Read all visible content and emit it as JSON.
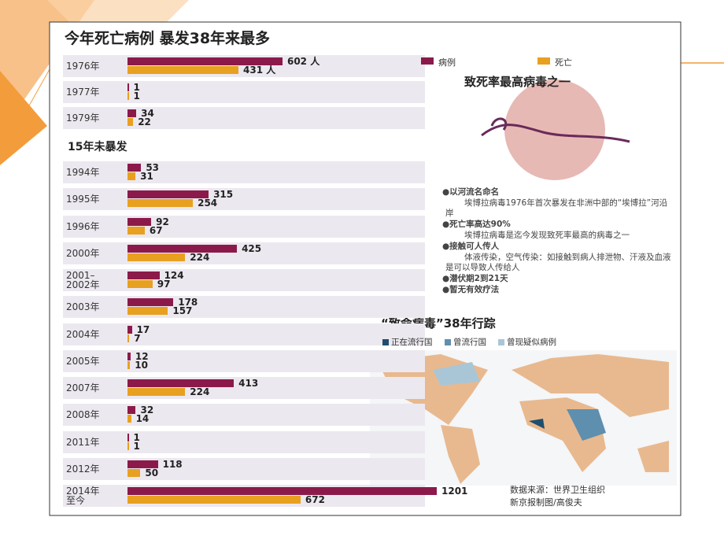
{
  "chart_data": {
    "type": "bar",
    "title": "今年死亡病例 暴发38年来最多",
    "section_label": "15年未暴发",
    "categories": [
      "1976年",
      "1977年",
      "1979年",
      "1994年",
      "1995年",
      "1996年",
      "2000年",
      "2001–\n2002年",
      "2003年",
      "2004年",
      "2005年",
      "2007年",
      "2008年",
      "2011年",
      "2012年",
      "2014年\n至今"
    ],
    "series": [
      {
        "name": "病例",
        "color": "#8b1a4a",
        "values": [
          602,
          1,
          34,
          53,
          315,
          92,
          425,
          124,
          178,
          17,
          12,
          413,
          32,
          1,
          118,
          1201
        ],
        "value_labels": [
          "602 人",
          "1",
          "34",
          "53",
          "315",
          "92",
          "425",
          "124",
          "178",
          "17",
          "12",
          "413",
          "32",
          "1",
          "118",
          "1201"
        ]
      },
      {
        "name": "死亡",
        "color": "#e8a020",
        "values": [
          431,
          1,
          22,
          31,
          254,
          67,
          224,
          97,
          157,
          7,
          10,
          224,
          14,
          1,
          50,
          672
        ],
        "value_labels": [
          "431 人",
          "1",
          "22",
          "31",
          "254",
          "67",
          "224",
          "97",
          "157",
          "7",
          "10",
          "224",
          "14",
          "1",
          "50",
          "672"
        ]
      }
    ]
  },
  "side_panel": {
    "title": "致死率最高病毒之一",
    "items": [
      "●以河流名命名",
      "埃博拉病毒1976年首次暴发在非洲中部的“埃博拉”河沿岸",
      "●死亡率高达90%",
      "埃博拉病毒是迄今发现致死率最高的病毒之一",
      "●接触可人传人",
      "体液传染，空气传染：如接触到病人排泄物、汗液及血液是可以导致人传给人",
      "●潜伏期2到21天",
      "●暂无有效疗法"
    ]
  },
  "map": {
    "title": "“致命病毒”38年行踪",
    "legend": [
      {
        "label": "正在流行国",
        "color": "#1f4e6e"
      },
      {
        "label": "曾流行国",
        "color": "#5f8fae"
      },
      {
        "label": "曾现疑似病例",
        "color": "#a9c6d6"
      }
    ]
  },
  "source": [
    "数据来源：世界卫生组织",
    "新京报制图/高俊夫"
  ]
}
